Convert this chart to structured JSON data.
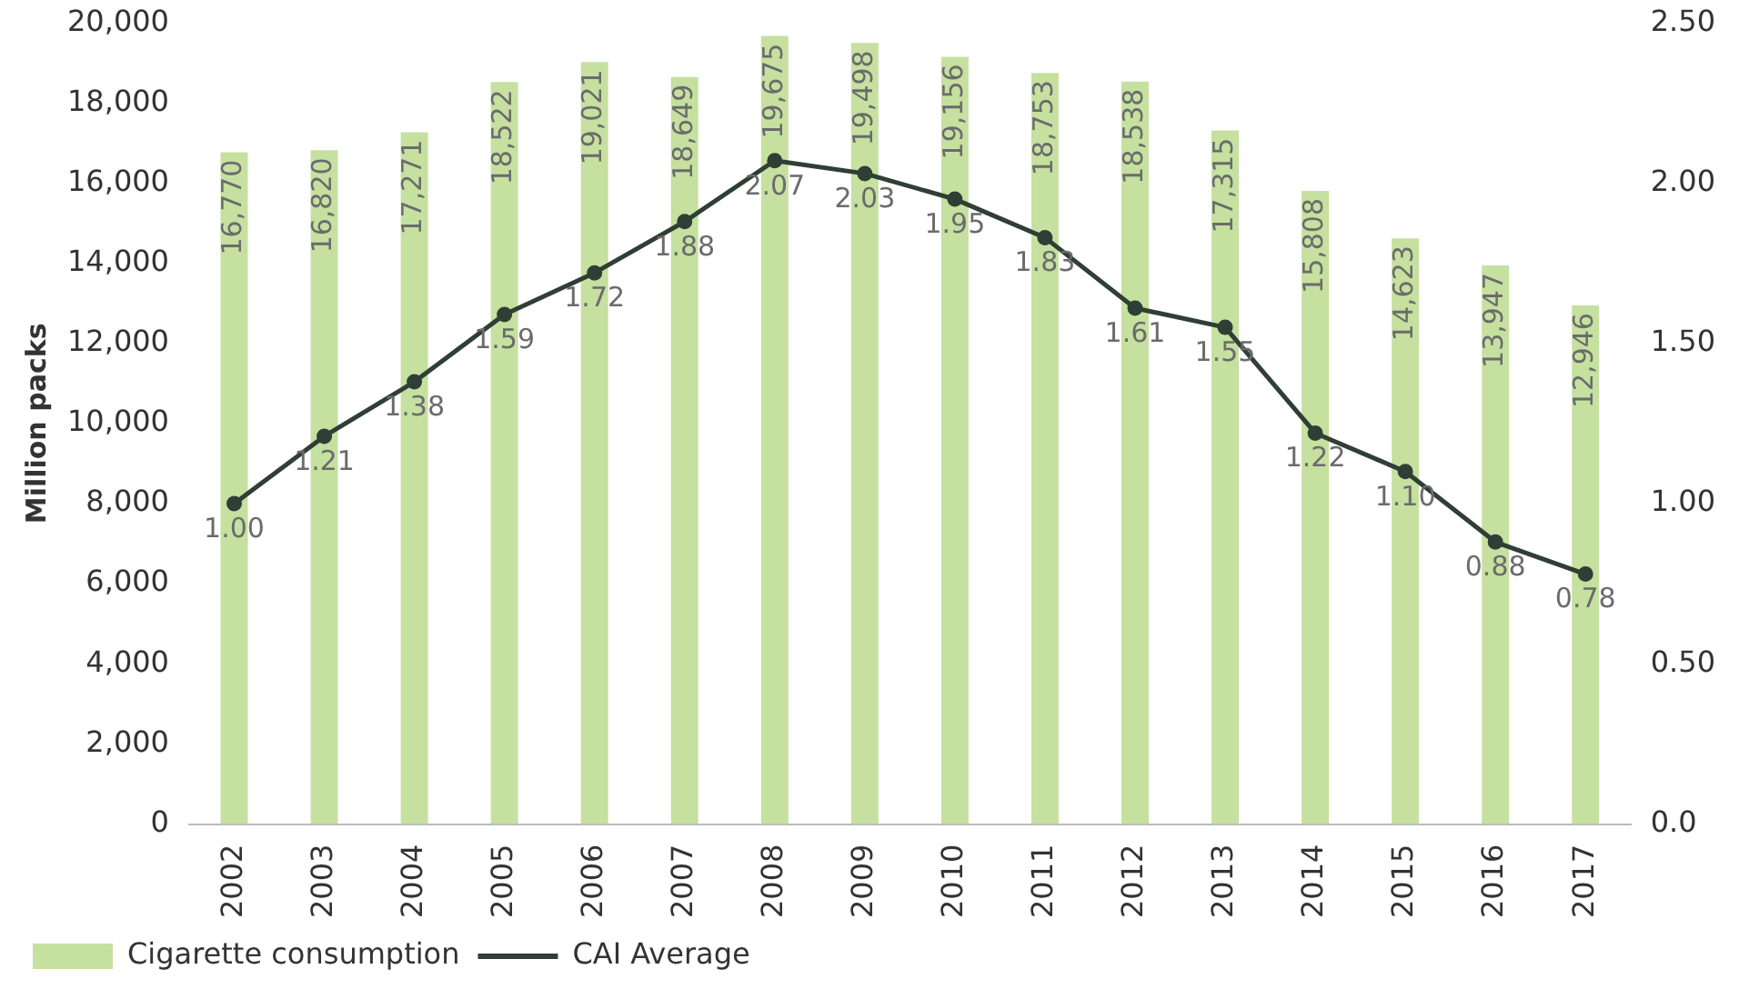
{
  "chart_data": {
    "type": "bar",
    "ylabel": "Million packs",
    "categories": [
      "2002",
      "2003",
      "2004",
      "2005",
      "2006",
      "2007",
      "2008",
      "2009",
      "2010",
      "2011",
      "2012",
      "2013",
      "2014",
      "2015",
      "2016",
      "2017"
    ],
    "series": [
      {
        "name": "Cigarette consumption",
        "color": "#c6e0a0",
        "values": [
          16770,
          16820,
          17271,
          18522,
          19021,
          18649,
          19675,
          19498,
          19156,
          18753,
          18538,
          17315,
          15808,
          14623,
          13947,
          12946
        ],
        "value_labels": [
          "16,770",
          "16,820",
          "17,271",
          "18,522",
          "19,021",
          "18,649",
          "19,675",
          "19,498",
          "19,156",
          "18,753",
          "18,538",
          "17,315",
          "15,808",
          "14,623",
          "13,947",
          "12,946"
        ]
      },
      {
        "type": "line",
        "name": "CAI Average",
        "color": "#2f3f35",
        "axis": "y2",
        "marker": "circle",
        "values": [
          1.0,
          1.21,
          1.38,
          1.59,
          1.72,
          1.88,
          2.07,
          2.03,
          1.95,
          1.83,
          1.61,
          1.55,
          1.22,
          1.1,
          0.88,
          0.78
        ],
        "value_labels": [
          "1.00",
          "1.21",
          "1.38",
          "1.59",
          "1.72",
          "1.88",
          "2.07",
          "2.03",
          "1.95",
          "1.83",
          "1.61",
          "1.55",
          "1.22",
          "1.10",
          "0.88",
          "0.78"
        ]
      }
    ],
    "ylim": [
      0,
      20000
    ],
    "yticks": [
      {
        "value": 0,
        "label": "0"
      },
      {
        "value": 2000,
        "label": "2,000"
      },
      {
        "value": 4000,
        "label": "4,000"
      },
      {
        "value": 6000,
        "label": "6,000"
      },
      {
        "value": 8000,
        "label": "8,000"
      },
      {
        "value": 10000,
        "label": "10,000"
      },
      {
        "value": 12000,
        "label": "12,000"
      },
      {
        "value": 14000,
        "label": "14,000"
      },
      {
        "value": 16000,
        "label": "16,000"
      },
      {
        "value": 18000,
        "label": "18,000"
      },
      {
        "value": 20000,
        "label": "20,000"
      }
    ],
    "y2lim": [
      0,
      2.5
    ],
    "y2ticks": [
      {
        "value": 0,
        "label": "0.0"
      },
      {
        "value": 0.5,
        "label": "0.50"
      },
      {
        "value": 1,
        "label": "1.00"
      },
      {
        "value": 1.5,
        "label": "1.50"
      },
      {
        "value": 2,
        "label": "2.00"
      },
      {
        "value": 2.5,
        "label": "2.50"
      }
    ],
    "legend": "bottom left"
  }
}
